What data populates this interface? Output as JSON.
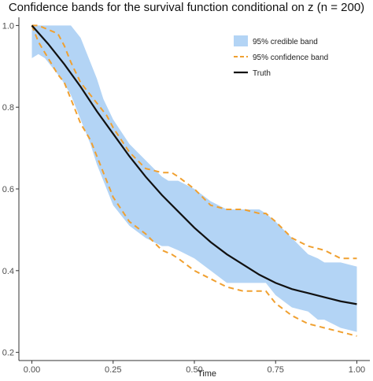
{
  "chart_data": {
    "type": "line",
    "title": "Confidence bands for the survival function conditional on z (n = 200)",
    "xlabel": "Time",
    "ylabel": "",
    "xlim": [
      -0.04,
      1.04
    ],
    "ylim": [
      0.18,
      1.02
    ],
    "x_ticks": [
      "0.00",
      "0.25",
      "0.50",
      "0.75",
      "1.00"
    ],
    "x_tick_values": [
      0,
      0.25,
      0.5,
      0.75,
      1.0
    ],
    "y_ticks": [
      "0.2",
      "0.4",
      "0.6",
      "0.8",
      "1.0"
    ],
    "y_tick_values": [
      0.2,
      0.4,
      0.6,
      0.8,
      1.0
    ],
    "grid": false,
    "legend_position": "top-right",
    "series": [
      {
        "name": "95% credible band",
        "kind": "band",
        "color": "#b3d4f5",
        "x": [
          0,
          0.02,
          0.04,
          0.06,
          0.09,
          0.12,
          0.15,
          0.18,
          0.2,
          0.22,
          0.25,
          0.3,
          0.35,
          0.4,
          0.42,
          0.45,
          0.5,
          0.55,
          0.6,
          0.65,
          0.7,
          0.72,
          0.75,
          0.8,
          0.85,
          0.88,
          0.9,
          0.95,
          1.0
        ],
        "upper": [
          1.0,
          1.0,
          1.0,
          1.0,
          1.0,
          1.0,
          0.97,
          0.91,
          0.87,
          0.82,
          0.77,
          0.71,
          0.67,
          0.63,
          0.62,
          0.62,
          0.6,
          0.57,
          0.55,
          0.55,
          0.55,
          0.54,
          0.52,
          0.48,
          0.44,
          0.43,
          0.42,
          0.42,
          0.41
        ],
        "lower": [
          0.92,
          0.93,
          0.92,
          0.9,
          0.87,
          0.83,
          0.77,
          0.71,
          0.66,
          0.62,
          0.56,
          0.51,
          0.48,
          0.46,
          0.46,
          0.45,
          0.43,
          0.4,
          0.37,
          0.37,
          0.37,
          0.37,
          0.34,
          0.31,
          0.3,
          0.28,
          0.28,
          0.26,
          0.25
        ]
      },
      {
        "name": "95% confidence band",
        "kind": "dashed-pair",
        "color": "#f0a030",
        "x": [
          0,
          0.02,
          0.05,
          0.08,
          0.1,
          0.12,
          0.15,
          0.18,
          0.2,
          0.23,
          0.25,
          0.3,
          0.35,
          0.4,
          0.43,
          0.45,
          0.5,
          0.55,
          0.6,
          0.65,
          0.7,
          0.72,
          0.75,
          0.8,
          0.85,
          0.9,
          0.95,
          1.0
        ],
        "upper": [
          1.0,
          1.0,
          0.99,
          0.98,
          0.95,
          0.91,
          0.86,
          0.83,
          0.81,
          0.78,
          0.75,
          0.69,
          0.65,
          0.64,
          0.64,
          0.63,
          0.6,
          0.56,
          0.55,
          0.55,
          0.54,
          0.54,
          0.52,
          0.48,
          0.46,
          0.45,
          0.43,
          0.43
        ],
        "lower": [
          1.0,
          0.96,
          0.92,
          0.88,
          0.86,
          0.82,
          0.76,
          0.72,
          0.68,
          0.62,
          0.58,
          0.52,
          0.49,
          0.45,
          0.44,
          0.43,
          0.4,
          0.38,
          0.36,
          0.35,
          0.35,
          0.35,
          0.32,
          0.29,
          0.27,
          0.26,
          0.25,
          0.24
        ]
      },
      {
        "name": "Truth",
        "kind": "line",
        "color": "#111111",
        "x": [
          0,
          0.05,
          0.1,
          0.15,
          0.2,
          0.25,
          0.3,
          0.35,
          0.4,
          0.45,
          0.5,
          0.55,
          0.6,
          0.65,
          0.7,
          0.75,
          0.8,
          0.85,
          0.9,
          0.95,
          1.0
        ],
        "y": [
          1.0,
          0.955,
          0.905,
          0.85,
          0.79,
          0.735,
          0.68,
          0.63,
          0.585,
          0.545,
          0.505,
          0.47,
          0.44,
          0.415,
          0.39,
          0.37,
          0.355,
          0.345,
          0.335,
          0.325,
          0.318
        ]
      }
    ]
  }
}
